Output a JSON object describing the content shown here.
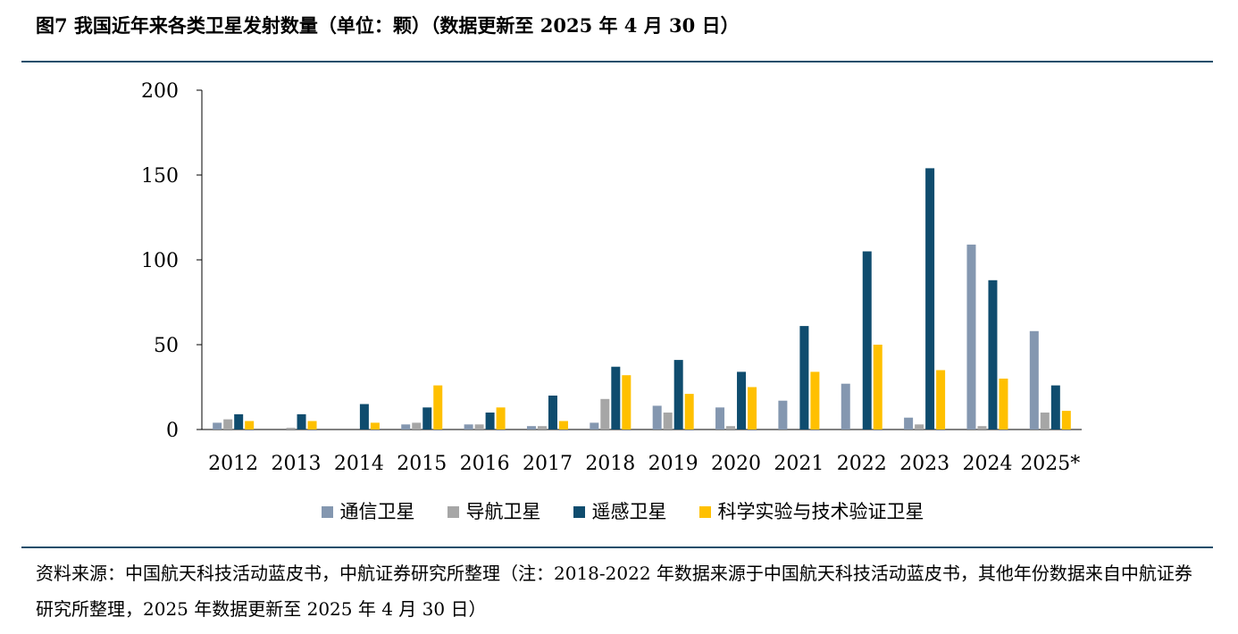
{
  "header": {
    "title": "图7  我国近年来各类卫星发射数量（单位：颗）（数据更新至 2025 年 4 月 30 日）"
  },
  "footer": {
    "source": "资料来源：中国航天科技活动蓝皮书，中航证券研究所整理（注：2018-2022 年数据来源于中国航天科技活动蓝皮书，其他年份数据来自中航证券研究所整理，2025 年数据更新至 2025 年 4 月 30 日）"
  },
  "chart_data": {
    "type": "bar",
    "title": "图7  我国近年来各类卫星发射数量（单位：颗）（数据更新至 2025 年 4 月 30 日）",
    "xlabel": "",
    "ylabel": "",
    "categories": [
      "2012",
      "2013",
      "2014",
      "2015",
      "2016",
      "2017",
      "2018",
      "2019",
      "2020",
      "2021",
      "2022",
      "2023",
      "2024",
      "2025*"
    ],
    "ylim": [
      0,
      200
    ],
    "yticks": [
      0,
      50,
      100,
      150,
      200
    ],
    "grid": false,
    "legend_position": "bottom",
    "series": [
      {
        "name": "通信卫星",
        "color": "#8497b0",
        "values": [
          4,
          0,
          0,
          3,
          3,
          2,
          4,
          14,
          13,
          17,
          27,
          7,
          109,
          58
        ]
      },
      {
        "name": "导航卫星",
        "color": "#a6a6a6",
        "values": [
          6,
          1,
          0,
          4,
          3,
          2,
          18,
          10,
          2,
          0,
          0,
          3,
          2,
          10
        ]
      },
      {
        "name": "遥感卫星",
        "color": "#0f4c6e",
        "values": [
          9,
          9,
          15,
          13,
          10,
          20,
          37,
          41,
          34,
          61,
          105,
          154,
          88,
          26
        ]
      },
      {
        "name": "科学实验与技术验证卫星",
        "color": "#ffc000",
        "values": [
          5,
          5,
          4,
          26,
          13,
          5,
          32,
          21,
          25,
          34,
          50,
          35,
          30,
          11
        ]
      }
    ]
  }
}
